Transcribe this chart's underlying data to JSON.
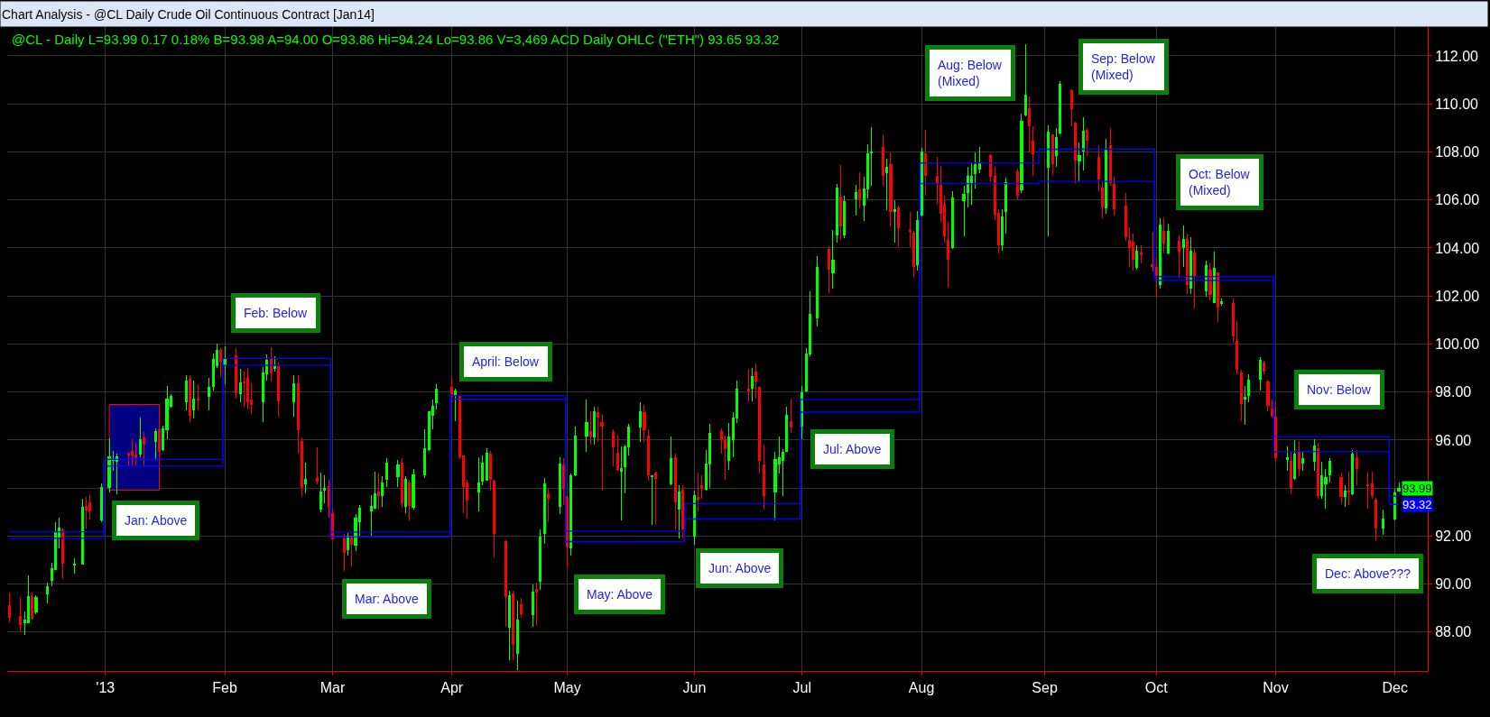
{
  "chart_data": {
    "type": "candlestick",
    "title": "Chart Analysis - @CL Daily Crude Oil Continuous Contract [Jan14]",
    "subtitle": "@CL - Daily L=93.99 0.17 0.18% B=93.98 A=94.00 O=93.86 Hi=94.24 Lo=93.86 V=3,469 ACD Daily OHLC (\"ETH\") 93.65 93.32",
    "xlim": [
      "2012-12-06T12:00",
      "2013-12-10T12:00"
    ],
    "xticks": [
      {
        "value": "2013-01-01",
        "label": "'13"
      },
      {
        "value": "2013-02-01",
        "label": "Feb"
      },
      {
        "value": "2013-03-01",
        "label": "Mar"
      },
      {
        "value": "2013-04-01",
        "label": "Apr"
      },
      {
        "value": "2013-05-01",
        "label": "May"
      },
      {
        "value": "2013-06-03",
        "label": "Jun"
      },
      {
        "value": "2013-07-01",
        "label": "Jul"
      },
      {
        "value": "2013-08-01",
        "label": "Aug"
      },
      {
        "value": "2013-09-02",
        "label": "Sep"
      },
      {
        "value": "2013-10-01",
        "label": "Oct"
      },
      {
        "value": "2013-11-01",
        "label": "Nov"
      },
      {
        "value": "2013-12-02",
        "label": "Dec"
      }
    ],
    "ylim": [
      86.38,
      113.2
    ],
    "yticks": [
      {
        "value": 88,
        "label": "88.00"
      },
      {
        "value": 90,
        "label": "90.00"
      },
      {
        "value": 92,
        "label": "92.00"
      },
      {
        "value": 94,
        "label": null
      },
      {
        "value": 96,
        "label": "96.00"
      },
      {
        "value": 98,
        "label": "98.00"
      },
      {
        "value": 100,
        "label": "100.00"
      },
      {
        "value": 102,
        "label": "102.00"
      },
      {
        "value": 104,
        "label": "104.00"
      },
      {
        "value": 106,
        "label": "106.00"
      },
      {
        "value": 108,
        "label": "108.00"
      },
      {
        "value": 110,
        "label": "110.00"
      },
      {
        "value": 112,
        "label": "112.00"
      }
    ],
    "grid": true,
    "series": [
      {
        "type": "area",
        "color": "#000080",
        "x": [
          "2013-01-02",
          "2013-01-15",
          "2013-01-15",
          "2013-01-02",
          "2013-01-02"
        ],
        "values": [
          93.91,
          93.91,
          97.48,
          97.48,
          93.91
        ]
      },
      {
        "type": "step",
        "color": "#0000ff",
        "x": [
          "2012-12-07",
          "2012-12-31T12:00",
          "2013-01-31T12:00",
          "2013-02-28T12:00",
          "2013-03-31T12:00",
          "2013-04-30T12:00",
          "2013-05-31T12:00",
          "2013-06-30T12:00",
          "2013-07-31T12:00",
          "2013-08-31T12:00",
          "2013-09-30T12:00",
          "2013-10-31T12:00",
          "2013-11-30T12:00",
          "2013-12-03"
        ],
        "values": [
          92.18,
          95.19,
          99.4,
          92.17,
          97.85,
          92.21,
          93.35,
          97.69,
          107.54,
          108.11,
          102.81,
          96.14,
          93.66,
          93.66
        ]
      },
      {
        "type": "step",
        "color": "#0000ff",
        "x": [
          "2012-12-07",
          "2012-12-31T12:00",
          "2013-01-31T12:00",
          "2013-02-28T12:00",
          "2013-03-31T12:00",
          "2013-04-30T12:00",
          "2013-05-31T12:00",
          "2013-06-30T12:00",
          "2013-07-31T12:00",
          "2013-08-31T12:00",
          "2013-09-30T12:00",
          "2013-10-31T12:00",
          "2013-11-30T12:00",
          "2013-12-03"
        ],
        "values": [
          91.91,
          94.92,
          99.11,
          91.96,
          97.7,
          91.77,
          92.71,
          97.16,
          106.68,
          106.77,
          102.65,
          95.52,
          93.32,
          93.32
        ],
        "value_labels": [
          null,
          null,
          null,
          null,
          null,
          null,
          null,
          null,
          null,
          null,
          null,
          null,
          null,
          "93.32"
        ]
      },
      {
        "color": "#00ff00",
        "x": [
          "2012-12-11",
          "2012-12-12",
          "2012-12-14",
          "2012-12-17",
          "2012-12-18",
          "2012-12-19",
          "2012-12-20",
          "2012-12-24",
          "2012-12-26",
          "2012-12-31",
          "2013-01-02",
          "2013-01-03",
          "2013-01-04",
          "2013-01-10",
          "2013-01-14",
          "2013-01-16",
          "2013-01-17",
          "2013-01-18",
          "2013-01-22",
          "2013-01-24",
          "2013-01-28",
          "2013-01-29",
          "2013-01-30",
          "2013-02-01",
          "2013-02-05",
          "2013-02-11",
          "2013-02-12",
          "2013-02-14",
          "2013-02-19",
          "2013-02-22",
          "2013-02-26",
          "2013-02-27",
          "2013-03-05",
          "2013-03-07",
          "2013-03-08",
          "2013-03-11",
          "2013-03-12",
          "2013-03-14",
          "2013-03-15",
          "2013-03-18",
          "2013-03-20",
          "2013-03-22",
          "2013-03-25",
          "2013-03-26",
          "2013-03-27",
          "2013-03-28",
          "2013-04-02",
          "2013-04-08",
          "2013-04-09",
          "2013-04-10",
          "2013-04-16",
          "2013-04-18",
          "2013-04-22",
          "2013-04-24",
          "2013-04-25",
          "2013-04-29",
          "2013-05-02",
          "2013-05-03",
          "2013-05-06",
          "2013-05-08",
          "2013-05-15",
          "2013-05-16",
          "2013-05-17",
          "2013-05-20",
          "2013-05-23",
          "2013-05-28",
          "2013-05-30",
          "2013-06-03",
          "2013-06-06",
          "2013-06-07",
          "2013-06-12",
          "2013-06-13",
          "2013-06-14",
          "2013-06-18",
          "2013-06-24",
          "2013-06-25",
          "2013-06-26",
          "2013-06-27",
          "2013-07-01",
          "2013-07-02",
          "2013-07-03",
          "2013-07-05",
          "2013-07-09",
          "2013-07-10",
          "2013-07-12",
          "2013-07-15",
          "2013-07-17",
          "2013-07-18",
          "2013-07-19",
          "2013-07-23",
          "2013-07-25",
          "2013-07-31",
          "2013-08-01",
          "2013-08-09",
          "2013-08-12",
          "2013-08-13",
          "2013-08-14",
          "2013-08-15",
          "2013-08-16",
          "2013-08-22",
          "2013-08-23",
          "2013-08-27",
          "2013-08-28",
          "2013-09-03",
          "2013-09-05",
          "2013-09-06",
          "2013-09-11",
          "2013-09-12",
          "2013-09-18",
          "2013-09-26",
          "2013-10-02",
          "2013-10-04",
          "2013-10-08",
          "2013-10-10",
          "2013-10-14",
          "2013-10-16",
          "2013-10-18",
          "2013-10-24",
          "2013-10-25",
          "2013-10-28",
          "2013-11-04",
          "2013-11-06",
          "2013-11-08",
          "2013-11-11",
          "2013-11-13",
          "2013-11-14",
          "2013-11-15",
          "2013-11-19",
          "2013-11-21",
          "2013-11-29",
          "2013-12-02",
          "2013-12-03"
        ],
        "ohlc": [
          [
            88.4,
            88.85,
            87.9,
            88.5
          ],
          [
            88.4,
            90.37,
            88.4,
            89.47
          ],
          [
            88.84,
            89.55,
            88.74,
            89.43
          ],
          [
            89.59,
            90.06,
            89.18,
            89.89
          ],
          [
            90.16,
            90.87,
            89.9,
            90.64
          ],
          [
            90.62,
            92.56,
            90.62,
            92.15
          ],
          [
            91.94,
            92.75,
            91.5,
            92.34
          ],
          [
            90.8,
            91.08,
            90.43,
            90.82
          ],
          [
            90.85,
            93.54,
            90.8,
            93.19
          ],
          [
            92.66,
            94.2,
            92.56,
            94.01
          ],
          [
            94.01,
            96.08,
            93.82,
            95.32
          ],
          [
            95.14,
            95.55,
            94.72,
            95.17
          ],
          [
            95.1,
            95.43,
            93.76,
            95.3
          ],
          [
            95.43,
            96.93,
            95.3,
            96.02
          ],
          [
            95.95,
            96.5,
            95.2,
            96.35
          ],
          [
            95.61,
            96.58,
            95.55,
            96.48
          ],
          [
            96.42,
            98.25,
            96.02,
            97.72
          ],
          [
            97.42,
            97.9,
            97.33,
            97.82
          ],
          [
            97.61,
            98.71,
            97.23,
            98.46
          ],
          [
            97.27,
            98.46,
            96.89,
            97.71
          ],
          [
            97.83,
            98.59,
            97.23,
            98.21
          ],
          [
            98.25,
            99.62,
            98.06,
            99.34
          ],
          [
            99.11,
            100.0,
            99.0,
            99.72
          ],
          [
            99.15,
            99.9,
            98.34,
            99.4
          ],
          [
            97.92,
            98.96,
            97.58,
            98.4
          ],
          [
            97.58,
            99.03,
            96.76,
            98.81
          ],
          [
            98.75,
            99.56,
            98.46,
            99.31
          ],
          [
            98.99,
            99.49,
            98.84,
            99.09
          ],
          [
            97.61,
            98.69,
            96.97,
            98.33
          ],
          [
            94.17,
            95.05,
            93.79,
            94.36
          ],
          [
            93.12,
            94.65,
            93.0,
            93.83
          ],
          [
            93.93,
            94.55,
            93.35,
            93.97
          ],
          [
            91.43,
            92.11,
            91.2,
            91.98
          ],
          [
            91.62,
            92.9,
            91.39,
            92.75
          ],
          [
            92.61,
            93.28,
            92.02,
            93.16
          ],
          [
            93.03,
            93.72,
            92.02,
            93.25
          ],
          [
            93.16,
            94.67,
            93.13,
            93.75
          ],
          [
            93.7,
            94.48,
            93.22,
            94.23
          ],
          [
            94.36,
            95.24,
            94.04,
            95.03
          ],
          [
            94.46,
            95.18,
            94.04,
            94.96
          ],
          [
            93.24,
            94.48,
            92.97,
            94.36
          ],
          [
            93.18,
            94.8,
            93.1,
            94.55
          ],
          [
            94.55,
            96.44,
            94.4,
            95.64
          ],
          [
            95.59,
            97.2,
            95.53,
            97.17
          ],
          [
            97.03,
            97.7,
            96.44,
            97.41
          ],
          [
            97.54,
            98.33,
            97.26,
            98.11
          ],
          [
            97.85,
            98.14,
            96.79,
            98.06
          ],
          [
            93.85,
            95.3,
            93.03,
            94.2
          ],
          [
            94.29,
            95.37,
            94.1,
            95.03
          ],
          [
            94.33,
            95.66,
            94.3,
            95.47
          ],
          [
            88.21,
            89.72,
            86.84,
            89.52
          ],
          [
            87.12,
            89.31,
            86.4,
            88.51
          ],
          [
            88.71,
            90.0,
            88.23,
            89.66
          ],
          [
            90.1,
            92.27,
            89.75,
            91.96
          ],
          [
            92.11,
            94.42,
            91.67,
            94.19
          ],
          [
            93.25,
            95.27,
            92.9,
            95.01
          ],
          [
            91.52,
            94.61,
            91.2,
            94.52
          ],
          [
            94.55,
            96.57,
            94.48,
            96.16
          ],
          [
            96.15,
            97.7,
            95.49,
            96.72
          ],
          [
            96.12,
            97.39,
            95.81,
            97.17
          ],
          [
            94.7,
            95.74,
            92.65,
            94.82
          ],
          [
            94.89,
            95.81,
            93.79,
            95.71
          ],
          [
            95.72,
            96.69,
            95.37,
            96.53
          ],
          [
            96.53,
            97.58,
            95.93,
            97.17
          ],
          [
            94.46,
            94.55,
            92.46,
            94.51
          ],
          [
            94.17,
            96.16,
            94.1,
            95.24
          ],
          [
            93.14,
            94.1,
            91.89,
            93.85
          ],
          [
            91.98,
            93.91,
            91.64,
            93.69
          ],
          [
            93.95,
            95.59,
            93.9,
            95.01
          ],
          [
            94.99,
            96.66,
            94.0,
            96.27
          ],
          [
            95.15,
            96.72,
            94.76,
            96.12
          ],
          [
            96.02,
            97.16,
            95.3,
            96.93
          ],
          [
            96.93,
            98.46,
            96.71,
            98.1
          ],
          [
            98.15,
            99.0,
            97.62,
            98.63
          ],
          [
            93.82,
            95.49,
            92.67,
            95.18
          ],
          [
            94.99,
            96.16,
            94.61,
            95.28
          ],
          [
            95.14,
            95.62,
            93.67,
            95.49
          ],
          [
            95.53,
            97.4,
            95.5,
            97.02
          ],
          [
            96.58,
            98.25,
            96.05,
            97.96
          ],
          [
            98.04,
            99.84,
            98.0,
            99.57
          ],
          [
            99.59,
            102.18,
            99.5,
            101.22
          ],
          [
            101.1,
            103.65,
            100.72,
            103.18
          ],
          [
            102.98,
            104.74,
            102.3,
            103.48
          ],
          [
            104.56,
            106.66,
            104.21,
            106.49
          ],
          [
            104.56,
            106.16,
            104.4,
            105.94
          ],
          [
            106.03,
            106.62,
            105.34,
            106.32
          ],
          [
            105.77,
            106.95,
            105.11,
            106.47
          ],
          [
            106.47,
            108.33,
            106.07,
            107.94
          ],
          [
            107.96,
            109.03,
            106.59,
            108.0
          ],
          [
            107.12,
            107.7,
            105.59,
            107.35
          ],
          [
            105.52,
            105.97,
            104.21,
            105.59
          ],
          [
            103.29,
            105.53,
            103.06,
            105.15
          ],
          [
            105.38,
            108.16,
            105.3,
            108.0
          ],
          [
            104.01,
            106.38,
            103.95,
            106.1
          ],
          [
            105.98,
            106.6,
            104.47,
            106.23
          ],
          [
            106.29,
            107.36,
            105.7,
            106.98
          ],
          [
            106.71,
            107.51,
            105.79,
            106.98
          ],
          [
            107.11,
            107.98,
            106.48,
            107.46
          ],
          [
            107.27,
            108.21,
            107.11,
            107.55
          ],
          [
            104.12,
            105.6,
            103.87,
            105.29
          ],
          [
            105.51,
            106.92,
            104.6,
            106.71
          ],
          [
            106.42,
            109.58,
            106.3,
            109.26
          ],
          [
            109.52,
            112.5,
            109.49,
            110.37
          ],
          [
            107.36,
            109.11,
            104.5,
            108.83
          ],
          [
            107.83,
            108.99,
            107.38,
            108.61
          ],
          [
            108.78,
            110.93,
            108.74,
            110.81
          ],
          [
            107.63,
            108.39,
            106.73,
            107.83
          ],
          [
            108.02,
            109.43,
            107.23,
            108.86
          ],
          [
            105.66,
            108.55,
            105.41,
            108.11
          ],
          [
            103.18,
            104.1,
            103.09,
            103.88
          ],
          [
            102.48,
            105.25,
            102.31,
            104.97
          ],
          [
            103.78,
            105.03,
            103.74,
            104.69
          ],
          [
            104.03,
            104.93,
            103.21,
            104.37
          ],
          [
            102.33,
            104.43,
            102.08,
            103.88
          ],
          [
            102.23,
            103.46,
            101.98,
            103.26
          ],
          [
            101.73,
            103.84,
            101.7,
            103.17
          ],
          [
            101.68,
            101.89,
            101.6,
            101.77
          ],
          [
            97.72,
            98.25,
            96.62,
            97.77
          ],
          [
            97.85,
            98.75,
            97.56,
            98.49
          ],
          [
            98.53,
            99.47,
            98.06,
            99.32
          ],
          [
            95.17,
            95.74,
            94.73,
            95.26
          ],
          [
            94.39,
            95.99,
            94.35,
            95.42
          ],
          [
            95.02,
            95.49,
            94.73,
            95.23
          ],
          [
            95.11,
            96.03,
            94.73,
            95.76
          ],
          [
            93.7,
            95.11,
            93.54,
            94.52
          ],
          [
            94.17,
            94.79,
            93.16,
            94.42
          ],
          [
            94.54,
            95.23,
            94.23,
            95.13
          ],
          [
            93.64,
            94.1,
            93.22,
            93.89
          ],
          [
            93.75,
            95.57,
            93.7,
            95.43
          ],
          [
            92.32,
            93.1,
            92.07,
            92.72
          ],
          [
            92.72,
            93.98,
            92.66,
            93.81
          ],
          [
            93.86,
            94.24,
            93.86,
            93.99
          ]
        ],
        "value_labels": [
          null,
          null,
          null,
          null,
          null,
          null,
          null,
          null,
          null,
          null,
          null,
          null,
          null,
          null,
          null,
          null,
          null,
          null,
          null,
          null,
          null,
          null,
          null,
          null,
          null,
          null,
          null,
          null,
          null,
          null,
          null,
          null,
          null,
          null,
          null,
          null,
          null,
          null,
          null,
          null,
          null,
          null,
          null,
          null,
          null,
          null,
          null,
          null,
          null,
          null,
          null,
          null,
          null,
          null,
          null,
          null,
          null,
          null,
          null,
          null,
          null,
          null,
          null,
          null,
          null,
          null,
          null,
          null,
          null,
          null,
          null,
          null,
          null,
          null,
          null,
          null,
          null,
          null,
          null,
          null,
          null,
          null,
          null,
          null,
          null,
          null,
          null,
          null,
          null,
          null,
          null,
          null,
          null,
          null,
          null,
          null,
          null,
          null,
          null,
          null,
          null,
          null,
          null,
          null,
          null,
          null,
          null,
          null,
          null,
          null,
          null,
          null,
          null,
          null,
          null,
          null,
          null,
          null,
          null,
          null,
          null,
          null,
          null,
          null,
          null,
          null,
          null,
          null,
          null,
          null,
          null,
          "93.99"
        ]
      },
      {
        "color": "#ff0000",
        "x": [
          "2012-12-07",
          "2012-12-10",
          "2012-12-13",
          "2012-12-21",
          "2012-12-27",
          "2012-12-28",
          "2013-01-07",
          "2013-01-08",
          "2013-01-09",
          "2013-01-11",
          "2013-01-15",
          "2013-01-23",
          "2013-01-25",
          "2013-01-31",
          "2013-02-04",
          "2013-02-06",
          "2013-02-07",
          "2013-02-08",
          "2013-02-13",
          "2013-02-15",
          "2013-02-20",
          "2013-02-21",
          "2013-02-25",
          "2013-02-28",
          "2013-03-01",
          "2013-03-04",
          "2013-03-06",
          "2013-03-13",
          "2013-03-19",
          "2013-03-21",
          "2013-04-01",
          "2013-04-03",
          "2013-04-04",
          "2013-04-05",
          "2013-04-11",
          "2013-04-12",
          "2013-04-15",
          "2013-04-17",
          "2013-04-19",
          "2013-04-23",
          "2013-04-26",
          "2013-04-30",
          "2013-05-01",
          "2013-05-07",
          "2013-05-09",
          "2013-05-10",
          "2013-05-13",
          "2013-05-14",
          "2013-05-21",
          "2013-05-22",
          "2013-05-24",
          "2013-05-29",
          "2013-05-31",
          "2013-06-04",
          "2013-06-05",
          "2013-06-10",
          "2013-06-11",
          "2013-06-17",
          "2013-06-19",
          "2013-06-20",
          "2013-06-21",
          "2013-06-28",
          "2013-07-08",
          "2013-07-11",
          "2013-07-16",
          "2013-07-22",
          "2013-07-24",
          "2013-07-26",
          "2013-07-29",
          "2013-07-30",
          "2013-08-02",
          "2013-08-05",
          "2013-08-06",
          "2013-08-07",
          "2013-08-08",
          "2013-08-19",
          "2013-08-20",
          "2013-08-21",
          "2013-08-26",
          "2013-08-29",
          "2013-08-30",
          "2013-09-04",
          "2013-09-09",
          "2013-09-10",
          "2013-09-13",
          "2013-09-16",
          "2013-09-17",
          "2013-09-19",
          "2013-09-20",
          "2013-09-23",
          "2013-09-24",
          "2013-09-25",
          "2013-09-27",
          "2013-09-30",
          "2013-10-01",
          "2013-10-03",
          "2013-10-07",
          "2013-10-09",
          "2013-10-11",
          "2013-10-15",
          "2013-10-17",
          "2013-10-21",
          "2013-10-22",
          "2013-10-23",
          "2013-10-29",
          "2013-10-30",
          "2013-10-31",
          "2013-11-01",
          "2013-11-05",
          "2013-11-07",
          "2013-11-12",
          "2013-11-18",
          "2013-11-20",
          "2013-11-22",
          "2013-11-25",
          "2013-11-26",
          "2013-11-27"
        ],
        "ohlc": [
          [
            89.11,
            89.64,
            88.42,
            88.61
          ],
          [
            88.67,
            89.47,
            88.02,
            88.3
          ],
          [
            89.47,
            89.64,
            88.52,
            88.59
          ],
          [
            92.25,
            92.31,
            90.21,
            90.87
          ],
          [
            93.23,
            93.63,
            92.31,
            93.1
          ],
          [
            93.38,
            93.69,
            92.69,
            93.04
          ],
          [
            95.41,
            95.51,
            94.92,
            95.36
          ],
          [
            95.54,
            96.02,
            94.92,
            95.39
          ],
          [
            95.38,
            95.88,
            94.95,
            95.31
          ],
          [
            96.09,
            96.35,
            94.87,
            95.81
          ],
          [
            96.43,
            96.64,
            95.45,
            95.51
          ],
          [
            98.55,
            98.71,
            96.74,
            97.02
          ],
          [
            97.71,
            98.34,
            97.23,
            97.65
          ],
          [
            99.75,
            99.84,
            98.61,
            99.28
          ],
          [
            99.49,
            99.84,
            97.71,
            97.96
          ],
          [
            98.42,
            98.84,
            97.39,
            98.38
          ],
          [
            98.62,
            98.99,
            97.26,
            97.61
          ],
          [
            97.68,
            98.37,
            97.07,
            97.49
          ],
          [
            99.38,
            99.87,
            98.42,
            98.79
          ],
          [
            99.09,
            99.22,
            96.97,
            97.64
          ],
          [
            98.33,
            98.69,
            95.43,
            96.44
          ],
          [
            95.93,
            96.12,
            93.66,
            94.04
          ],
          [
            94.42,
            95.68,
            94.17,
            94.29
          ],
          [
            94.07,
            94.36,
            92.78,
            93.24
          ],
          [
            92.94,
            93.16,
            91.85,
            91.89
          ],
          [
            91.89,
            92.08,
            90.54,
            91.33
          ],
          [
            91.98,
            92.02,
            90.73,
            91.64
          ],
          [
            93.83,
            94.61,
            93.09,
            93.7
          ],
          [
            95.05,
            95.24,
            93.18,
            93.37
          ],
          [
            94.23,
            94.36,
            92.65,
            93.28
          ],
          [
            98.21,
            98.61,
            97.58,
            97.92
          ],
          [
            97.83,
            97.85,
            95.2,
            95.3
          ],
          [
            95.33,
            95.37,
            92.97,
            94.08
          ],
          [
            94.2,
            94.36,
            92.71,
            93.51
          ],
          [
            95.4,
            95.56,
            93.91,
            94.36
          ],
          [
            94.29,
            94.36,
            91.11,
            92.11
          ],
          [
            91.77,
            91.83,
            88.23,
            89.49
          ],
          [
            89.6,
            89.72,
            86.84,
            87.47
          ],
          [
            89.14,
            89.43,
            88.59,
            88.78
          ],
          [
            89.79,
            90.06,
            88.3,
            89.68
          ],
          [
            93.76,
            93.98,
            92.59,
            93.56
          ],
          [
            94.95,
            95.24,
            93.28,
            94.0
          ],
          [
            93.6,
            93.72,
            90.66,
            91.55
          ],
          [
            96.34,
            97.2,
            95.81,
            96.16
          ],
          [
            97.13,
            97.39,
            95.93,
            96.97
          ],
          [
            96.72,
            97.07,
            93.91,
            96.59
          ],
          [
            96.31,
            96.44,
            94.92,
            95.72
          ],
          [
            95.47,
            96.19,
            94.73,
            94.77
          ],
          [
            97.13,
            97.45,
            95.93,
            96.44
          ],
          [
            96.15,
            96.44,
            94.29,
            94.55
          ],
          [
            94.61,
            94.67,
            92.46,
            94.39
          ],
          [
            95.28,
            95.43,
            92.27,
            93.41
          ],
          [
            93.9,
            94.1,
            91.9,
            92.3
          ],
          [
            93.62,
            94.65,
            93.03,
            93.55
          ],
          [
            94.1,
            94.55,
            93.54,
            94.0
          ],
          [
            96.34,
            96.49,
            95.45,
            96.02
          ],
          [
            96.02,
            96.18,
            94.34,
            95.64
          ],
          [
            98.1,
            98.97,
            97.62,
            98.04
          ],
          [
            98.82,
            99.19,
            97.71,
            98.46
          ],
          [
            98.19,
            98.19,
            94.61,
            95.15
          ],
          [
            94.95,
            95.8,
            93.11,
            93.67
          ],
          [
            96.78,
            97.71,
            96.31,
            96.53
          ],
          [
            103.93,
            104.09,
            102.12,
            103.12
          ],
          [
            106.13,
            107.45,
            104.34,
            104.9
          ],
          [
            106.43,
            107.16,
            105.65,
            105.99
          ],
          [
            108.2,
            108.73,
            106.59,
            107.03
          ],
          [
            107.47,
            107.97,
            104.9,
            105.5
          ],
          [
            105.68,
            105.77,
            104.02,
            104.84
          ],
          [
            104.74,
            105.49,
            104.02,
            104.69
          ],
          [
            104.61,
            104.71,
            102.79,
            103.21
          ],
          [
            107.91,
            108.92,
            106.16,
            107.03
          ],
          [
            106.98,
            107.8,
            105.85,
            106.71
          ],
          [
            106.6,
            107.42,
            105.1,
            105.44
          ],
          [
            105.81,
            106.17,
            104.22,
            104.5
          ],
          [
            104.31,
            105.1,
            102.36,
            103.53
          ],
          [
            107.83,
            107.92,
            106.73,
            106.98
          ],
          [
            106.98,
            107.36,
            105.16,
            105.39
          ],
          [
            105.44,
            105.6,
            103.78,
            104.12
          ],
          [
            107.17,
            107.29,
            106.04,
            106.2
          ],
          [
            109.8,
            110.31,
            107.98,
            109.09
          ],
          [
            108.46,
            109.05,
            107.0,
            107.92
          ],
          [
            108.7,
            108.74,
            107.04,
            107.51
          ],
          [
            110.56,
            110.62,
            109.05,
            109.8
          ],
          [
            109.2,
            109.24,
            106.71,
            107.67
          ],
          [
            108.89,
            108.99,
            107.83,
            108.49
          ],
          [
            107.76,
            108.24,
            106.35,
            106.88
          ],
          [
            106.5,
            106.73,
            105.22,
            105.7
          ],
          [
            108.27,
            108.99,
            106.6,
            106.73
          ],
          [
            106.64,
            106.98,
            105.35,
            105.63
          ],
          [
            105.75,
            106.29,
            104.28,
            104.47
          ],
          [
            104.31,
            104.85,
            103.22,
            104.01
          ],
          [
            104.25,
            104.6,
            103.07,
            103.53
          ],
          [
            103.78,
            104.1,
            103.34,
            103.73
          ],
          [
            103.3,
            104.66,
            103.03,
            103.22
          ],
          [
            103.19,
            103.59,
            101.93,
            102.9
          ],
          [
            104.68,
            105.22,
            103.78,
            104.19
          ],
          [
            104.28,
            104.53,
            102.75,
            103.88
          ],
          [
            104.37,
            104.59,
            102.08,
            102.48
          ],
          [
            103.8,
            103.96,
            101.48,
            102.86
          ],
          [
            103.06,
            103.34,
            101.83,
            102.08
          ],
          [
            102.96,
            103.0,
            100.91,
            101.54
          ],
          [
            101.68,
            101.89,
            100.07,
            100.35
          ],
          [
            100.1,
            100.95,
            98.75,
            98.94
          ],
          [
            98.79,
            98.94,
            96.8,
            97.52
          ],
          [
            99.19,
            99.32,
            98.75,
            98.86
          ],
          [
            98.41,
            98.5,
            97.21,
            97.46
          ],
          [
            97.28,
            97.68,
            96.93,
            97.02
          ],
          [
            96.97,
            97.56,
            95.05,
            95.26
          ],
          [
            95.11,
            95.49,
            93.73,
            94.0
          ],
          [
            95.51,
            95.95,
            94.48,
            94.83
          ],
          [
            95.64,
            95.89,
            93.54,
            93.7
          ],
          [
            94.42,
            94.63,
            93.37,
            93.66
          ],
          [
            93.89,
            94.67,
            93.29,
            93.84
          ],
          [
            95.27,
            95.57,
            94.1,
            94.83
          ],
          [
            94.14,
            94.67,
            93.16,
            94.09
          ],
          [
            94.19,
            94.69,
            93.54,
            93.69
          ],
          [
            93.51,
            93.6,
            91.8,
            92.32
          ]
        ]
      }
    ],
    "annotations": [
      "Jan: Above",
      "Feb: Below",
      "Mar: Above",
      "April: Below",
      "May: Above",
      "Jun: Above",
      "Jul: Above",
      "Aug: Below\n(Mixed)",
      "Sep: Below\n(Mixed)",
      "Oct: Below\n(Mixed)",
      "Nov: Below",
      "Dec: Above???"
    ]
  }
}
